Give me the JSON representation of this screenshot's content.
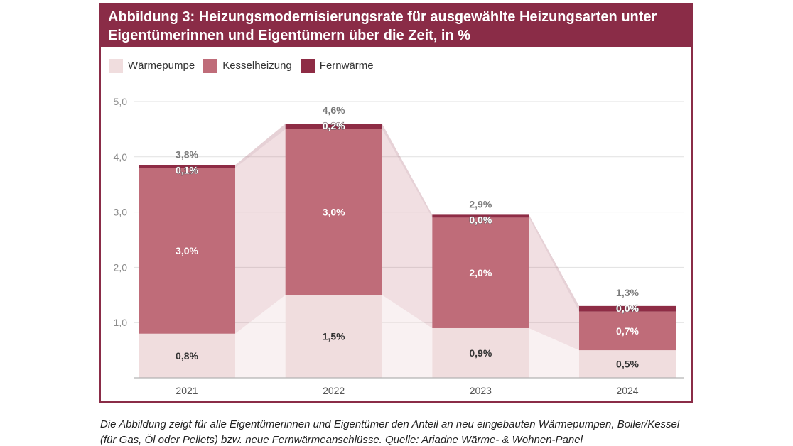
{
  "colors": {
    "brand": "#8a2c47",
    "gridline": "#e1e1e1",
    "axis_line": "#b3b3b3",
    "axis_text": "#8c8c8c",
    "category_text": "#555555",
    "label_dark": "#333333",
    "label_light": "#ffffff",
    "label_outline": "#6f5a60",
    "total_label": "#7b7b7b"
  },
  "caption_lines": [
    "Die Abbildung zeigt für alle Eigentümerinnen und Eigentümer den Anteil an neu eingebauten Wärmepumpen, Boiler/Kessel",
    "(für Gas, Öl oder Pellets) bzw. neue Fernwärmeanschlüsse. Quelle: Ariadne Wärme- & Wohnen-Panel"
  ],
  "chart_data": {
    "type": "bar",
    "stacked": true,
    "title": "Abbildung 3: Heizungsmodernisierungsrate für ausgewählte Heizungsarten unter Eigentümerinnen und Eigentümern über die Zeit, in %",
    "categories": [
      "2021",
      "2022",
      "2023",
      "2024"
    ],
    "ylim": [
      0,
      5
    ],
    "yticks": [
      1,
      2,
      3,
      4,
      5
    ],
    "ytick_labels": [
      "1,0",
      "2,0",
      "3,0",
      "4,0",
      "5,0"
    ],
    "grid": true,
    "legend": "top-left",
    "series": [
      {
        "name": "Wärmepumpe",
        "color": "#f0ddde",
        "values": [
          0.8,
          1.5,
          0.9,
          0.5
        ],
        "labels": [
          "0,8%",
          "1,5%",
          "0,9%",
          "0,5%"
        ]
      },
      {
        "name": "Kesselheizung",
        "color": "#bf6c79",
        "values": [
          3.0,
          3.0,
          2.0,
          0.7
        ],
        "labels": [
          "3,0%",
          "3,0%",
          "2,0%",
          "0,7%"
        ]
      },
      {
        "name": "Fernwärme",
        "color": "#8e2c45",
        "values": [
          0.1,
          0.2,
          0.0,
          0.0
        ],
        "labels": [
          "0,1%",
          "0,2%",
          "0,0%",
          "0,0%"
        ]
      }
    ],
    "totals": [
      3.8,
      4.6,
      2.9,
      1.3
    ],
    "total_labels": [
      "3,8%",
      "4,6%",
      "2,9%",
      "1,3%"
    ]
  }
}
